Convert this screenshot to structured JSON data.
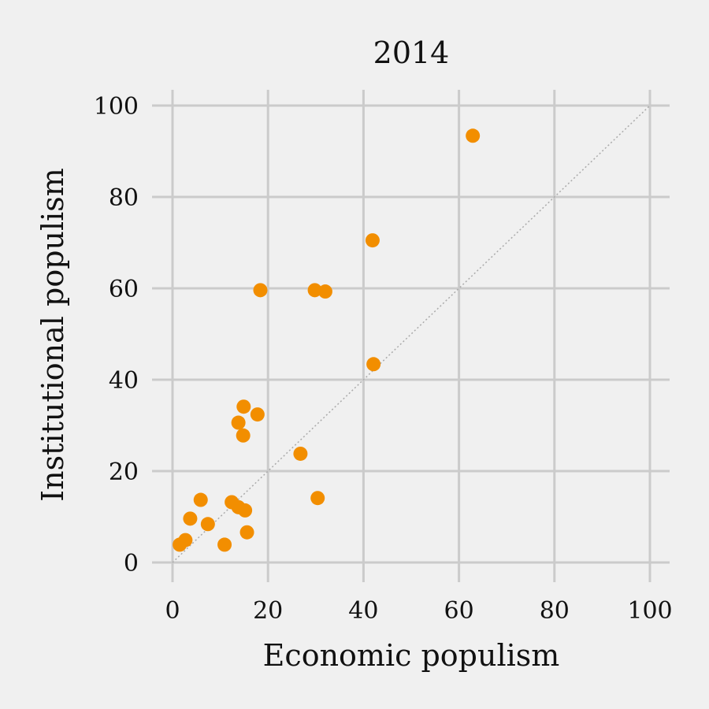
{
  "chart_data": {
    "type": "scatter",
    "title": "2014",
    "xlabel": "Economic populism",
    "ylabel": "Institutional populism",
    "xlim": [
      0,
      100
    ],
    "ylim": [
      0,
      100
    ],
    "xticks": [
      0,
      20,
      40,
      60,
      80,
      100
    ],
    "yticks": [
      0,
      20,
      40,
      60,
      80,
      100
    ],
    "grid": true,
    "reference_line": "y = x (dotted diagonal)",
    "colors": {
      "points": "#f28e00",
      "grid": "#cbcbcb",
      "background": "#f0f0f0",
      "reference_line": "#aaaaaa"
    },
    "series": [
      {
        "points": [
          {
            "x": 62.9,
            "y": 93.4
          },
          {
            "x": 41.9,
            "y": 70.5
          },
          {
            "x": 18.4,
            "y": 59.6
          },
          {
            "x": 29.8,
            "y": 59.6
          },
          {
            "x": 32.0,
            "y": 59.3
          },
          {
            "x": 42.1,
            "y": 43.4
          },
          {
            "x": 14.9,
            "y": 34.1
          },
          {
            "x": 17.8,
            "y": 32.4
          },
          {
            "x": 13.8,
            "y": 30.6
          },
          {
            "x": 14.8,
            "y": 27.8
          },
          {
            "x": 26.8,
            "y": 23.8
          },
          {
            "x": 30.4,
            "y": 14.1
          },
          {
            "x": 5.9,
            "y": 13.7
          },
          {
            "x": 12.4,
            "y": 13.2
          },
          {
            "x": 13.8,
            "y": 12.1
          },
          {
            "x": 15.2,
            "y": 11.4
          },
          {
            "x": 3.7,
            "y": 9.6
          },
          {
            "x": 7.4,
            "y": 8.4
          },
          {
            "x": 15.6,
            "y": 6.6
          },
          {
            "x": 2.7,
            "y": 4.9
          },
          {
            "x": 1.5,
            "y": 3.9
          },
          {
            "x": 10.9,
            "y": 3.9
          }
        ]
      }
    ]
  }
}
